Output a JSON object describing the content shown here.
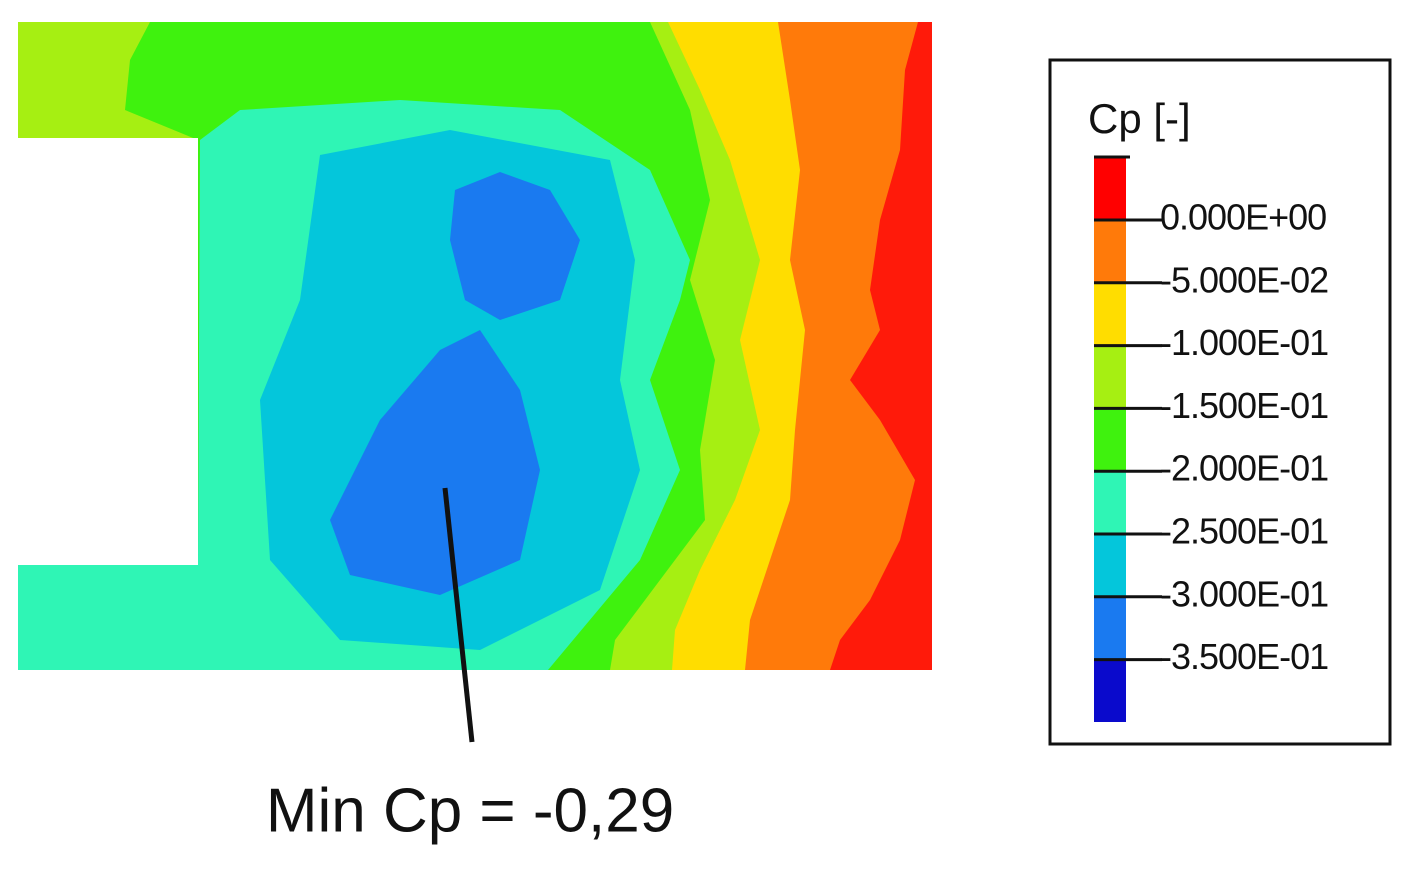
{
  "legend": {
    "title": "Cp [-]",
    "labels": [
      "0.000E+00",
      "-5.000E-02",
      "-1.000E-01",
      "-1.500E-01",
      "-2.000E-01",
      "-2.500E-01",
      "-3.000E-01",
      "-3.500E-01"
    ]
  },
  "annotation": "Min Cp = -0,29"
}
